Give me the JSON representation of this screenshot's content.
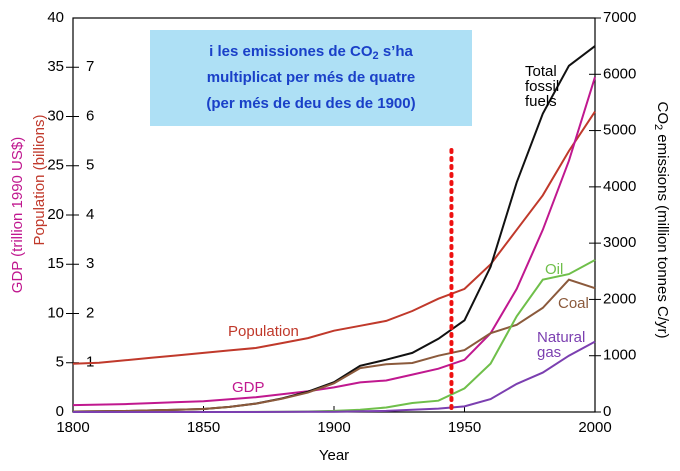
{
  "chart_data": {
    "type": "line",
    "x": [
      1800,
      1810,
      1820,
      1830,
      1840,
      1850,
      1860,
      1870,
      1880,
      1890,
      1900,
      1910,
      1920,
      1930,
      1940,
      1950,
      1960,
      1970,
      1980,
      1990,
      2000
    ],
    "xlim": [
      1800,
      2000
    ],
    "xticks": [
      1800,
      1850,
      1900,
      1950,
      2000
    ],
    "xlabel": "Year",
    "ylim": [
      0,
      40
    ],
    "yticks": [
      0,
      5,
      10,
      15,
      20,
      25,
      30,
      35,
      40
    ],
    "ylabel": "GDP (trillion 1990 US$)",
    "ypop_lim": [
      0,
      8
    ],
    "ypop_ticks": [
      1,
      2,
      3,
      4,
      5,
      6,
      7
    ],
    "ypop_label": "Population (billions)",
    "y2lim": [
      0,
      7000
    ],
    "y2ticks": [
      0,
      1000,
      2000,
      3000,
      4000,
      5000,
      6000,
      7000
    ],
    "y2label": [
      "CO",
      "2",
      " emissions (million tonnes C/yr)"
    ],
    "marker_x": 1945,
    "annotation": {
      "line1": [
        "i les emissiones de CO",
        "2",
        " s’ha"
      ],
      "line2": "multiplicat per més de quatre",
      "line3": "(per més de deu des de 1900)"
    },
    "series": [
      {
        "name": "Population",
        "color": "#c0392b",
        "axis": "ypop",
        "values": [
          0.98,
          1.0,
          1.05,
          1.1,
          1.15,
          1.2,
          1.25,
          1.3,
          1.4,
          1.5,
          1.65,
          1.75,
          1.85,
          2.05,
          2.3,
          2.5,
          3.0,
          3.7,
          4.4,
          5.3,
          6.1
        ]
      },
      {
        "name": "GDP",
        "color": "#c0188f",
        "axis": "y",
        "values": [
          0.7,
          0.75,
          0.8,
          0.9,
          1.0,
          1.1,
          1.3,
          1.5,
          1.8,
          2.1,
          2.5,
          3.0,
          3.2,
          3.8,
          4.4,
          5.3,
          8,
          12.5,
          18.5,
          25.5,
          34
        ]
      },
      {
        "name": [
          "Total",
          "fossil",
          "fuels"
        ],
        "color": "#111111",
        "axis": "y2",
        "values": [
          8,
          12,
          18,
          28,
          40,
          54,
          90,
          150,
          240,
          360,
          530,
          820,
          930,
          1050,
          1300,
          1630,
          2580,
          4080,
          5300,
          6150,
          6500
        ]
      },
      {
        "name": "Coal",
        "color": "#8b5a3c",
        "axis": "y2",
        "values": [
          8,
          12,
          18,
          28,
          40,
          54,
          90,
          148,
          235,
          345,
          510,
          780,
          850,
          870,
          1000,
          1100,
          1400,
          1550,
          1850,
          2350,
          2200
        ]
      },
      {
        "name": "Oil",
        "color": "#6fbf4a",
        "axis": "y2",
        "values": [
          0,
          0,
          0,
          0,
          0,
          0,
          0,
          1,
          3,
          8,
          20,
          40,
          80,
          160,
          200,
          420,
          860,
          1700,
          2350,
          2450,
          2700
        ]
      },
      {
        "name": [
          "Natural",
          "gas"
        ],
        "color": "#7b3fb0",
        "axis": "y2",
        "values": [
          0,
          0,
          0,
          0,
          0,
          0,
          0,
          0,
          1,
          3,
          6,
          12,
          20,
          40,
          60,
          100,
          230,
          500,
          700,
          1000,
          1250
        ]
      }
    ]
  }
}
